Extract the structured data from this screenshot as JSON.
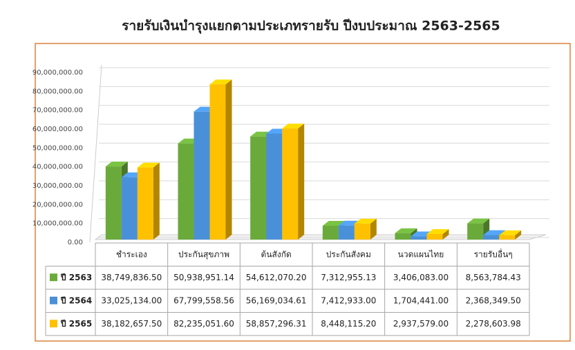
{
  "chart_data": {
    "type": "bar3d",
    "title": "รายรับเงินบำรุงแยกตามประเภทรายรับ ปีงบประมาณ 2563-2565",
    "categories": [
      "ชำระเอง",
      "ประกันสุขภาพ",
      "ต้นสังกัด",
      "ประกันสังคม",
      "นวดแผนไทย",
      "รายรับอื่นๆ"
    ],
    "series": [
      {
        "name": "ปี 2563",
        "color": "#6aaa3a",
        "values": [
          38749836.5,
          50938951.14,
          54612070.2,
          7312955.13,
          3406083,
          8563784.43
        ],
        "value_labels": [
          "38,749,836.50",
          "50,938,951.14",
          "54,612,070.20",
          "7,312,955.13",
          "3,406,083.00",
          "8,563,784.43"
        ]
      },
      {
        "name": "ปี 2564",
        "color": "#4a90d9",
        "values": [
          33025134,
          67799558.56,
          56169034.61,
          7412933,
          1704441,
          2368349.5
        ],
        "value_labels": [
          "33,025,134.00",
          "67,799,558.56",
          "56,169,034.61",
          "7,412,933.00",
          "1,704,441.00",
          "2,368,349.50"
        ]
      },
      {
        "name": "ปี 2565",
        "color": "#ffc000",
        "values": [
          38182657.5,
          82235051.6,
          58857296.31,
          8448115.2,
          2937579,
          2278603.98
        ],
        "value_labels": [
          "38,182,657.50",
          "82,235,051.60",
          "58,857,296.31",
          "8,448,115.20",
          "2,937,579.00",
          "2,278,603.98"
        ]
      }
    ],
    "ylim": [
      0,
      90000000
    ],
    "yticks": [
      {
        "value": 0,
        "label": "0.00"
      },
      {
        "value": 10000000,
        "label": "10,000,000.00"
      },
      {
        "value": 20000000,
        "label": "20,000,000.00"
      },
      {
        "value": 30000000,
        "label": "30,000,000.00"
      },
      {
        "value": 40000000,
        "label": "40,000,000.00"
      },
      {
        "value": 50000000,
        "label": "50,000,000.00"
      },
      {
        "value": 60000000,
        "label": "60,000,000.00"
      },
      {
        "value": 70000000,
        "label": "70,000,000.00"
      },
      {
        "value": 80000000,
        "label": "80,000,000.00"
      },
      {
        "value": 90000000,
        "label": "90,000,000.00"
      }
    ],
    "grid": true
  }
}
